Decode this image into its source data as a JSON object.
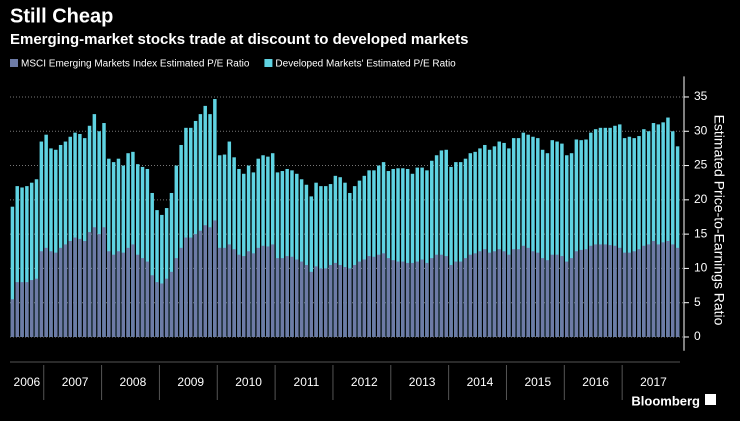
{
  "chart_data": {
    "type": "bar",
    "title": "Still Cheap",
    "subtitle": "Emerging-market stocks trade at discount to developed markets",
    "y_label": "Estimated Price-to-Earnings Ratio",
    "source": "Bloomberg",
    "categories": [
      null,
      null,
      null,
      "2006",
      null,
      null,
      null,
      null,
      null,
      null,
      null,
      null,
      null,
      "2007",
      null,
      null,
      null,
      null,
      null,
      null,
      null,
      null,
      null,
      null,
      null,
      "2008",
      null,
      null,
      null,
      null,
      null,
      null,
      null,
      null,
      null,
      null,
      null,
      "2009",
      null,
      null,
      null,
      null,
      null,
      null,
      null,
      null,
      null,
      null,
      null,
      "2010",
      null,
      null,
      null,
      null,
      null,
      null,
      null,
      null,
      null,
      null,
      null,
      "2011",
      null,
      null,
      null,
      null,
      null,
      null,
      null,
      null,
      null,
      null,
      null,
      "2012",
      null,
      null,
      null,
      null,
      null,
      null,
      null,
      null,
      null,
      null,
      null,
      "2013",
      null,
      null,
      null,
      null,
      null,
      null,
      null,
      null,
      null,
      null,
      null,
      "2014",
      null,
      null,
      null,
      null,
      null,
      null,
      null,
      null,
      null,
      null,
      null,
      "2015",
      null,
      null,
      null,
      null,
      null,
      null,
      null,
      null,
      null,
      null,
      null,
      "2016",
      null,
      null,
      null,
      null,
      null,
      null,
      null,
      null,
      null,
      null,
      null,
      "2017",
      null,
      null,
      null,
      null,
      null
    ],
    "series": [
      {
        "name": "Developed Markets' Estimated P/E Ratio",
        "color": "#5fd3e2",
        "values": [
          19,
          22,
          21.8,
          22,
          22.5,
          23,
          28.5,
          29.5,
          27.5,
          27.3,
          28,
          28.5,
          29.2,
          29.8,
          29.6,
          29,
          30.8,
          32.5,
          30,
          31.2,
          26,
          25.5,
          26,
          25,
          26.8,
          27,
          25.2,
          24.8,
          24.5,
          21,
          18.5,
          17.8,
          18.8,
          21,
          25,
          28,
          30.5,
          30.5,
          31.5,
          32.5,
          33.7,
          32.5,
          34.7,
          26.5,
          26.6,
          28.5,
          26.2,
          24.5,
          23.8,
          25,
          24,
          26,
          26.5,
          26.3,
          26.8,
          24,
          24.2,
          24.5,
          24.3,
          23.8,
          23,
          22.2,
          20.5,
          22.5,
          22,
          22,
          22.3,
          23.5,
          23.3,
          22.5,
          21,
          22,
          22.8,
          23.5,
          24.3,
          24.3,
          25,
          25.5,
          24.2,
          24.5,
          24.6,
          24.6,
          24.5,
          23.8,
          24.7,
          24.7,
          24.3,
          25.7,
          26.5,
          27.2,
          27.3,
          24.8,
          25.5,
          25.5,
          26,
          26.8,
          27,
          27.5,
          28,
          27.3,
          27.8,
          28.5,
          28.3,
          27.5,
          29,
          29,
          29.8,
          29.5,
          29.2,
          29,
          27.3,
          26.8,
          28.7,
          28.5,
          28.2,
          26.5,
          26.8,
          28.8,
          28.7,
          28.8,
          29.8,
          30.3,
          30.5,
          30.5,
          30.5,
          30.8,
          31,
          29,
          29.2,
          29,
          29.3,
          30.3,
          30,
          31.2,
          31,
          31.3,
          32,
          30,
          27.8
        ]
      },
      {
        "name": "MSCI Emerging Markets Index Estimated P/E Ratio",
        "color": "#6d7ba6",
        "values": [
          5.5,
          8,
          8,
          8,
          8.3,
          8.5,
          12.5,
          13,
          12.5,
          12.3,
          13,
          13.5,
          14,
          14.5,
          14.3,
          14,
          15.3,
          16,
          15,
          16,
          12.5,
          12,
          12.5,
          12.3,
          13,
          13.5,
          12,
          11.5,
          11,
          9,
          8,
          7.8,
          8.5,
          9.5,
          11.5,
          13,
          14.5,
          14.5,
          15,
          15.5,
          16.3,
          16,
          17,
          13,
          13,
          13.5,
          12.8,
          12,
          11.8,
          12.5,
          12.2,
          13,
          13.3,
          13.2,
          13.5,
          11.5,
          11.5,
          11.8,
          11.7,
          11.3,
          11,
          10.5,
          9.5,
          10.3,
          10,
          10,
          10.5,
          10.8,
          10.5,
          10.2,
          10,
          10.5,
          11,
          11.3,
          11.8,
          11.7,
          12,
          12.2,
          11.5,
          11.2,
          11,
          11,
          10.8,
          10.8,
          11,
          11.3,
          10.8,
          11.5,
          12,
          12,
          11.8,
          10.5,
          11,
          11,
          11.5,
          12,
          12.2,
          12.5,
          12.8,
          12.3,
          12.5,
          12.8,
          12.5,
          12,
          12.8,
          12.8,
          13.3,
          13,
          12.5,
          12.3,
          11.5,
          11.2,
          12,
          12,
          11.8,
          11,
          11.5,
          12.5,
          12.7,
          12.8,
          13.3,
          13.5,
          13.5,
          13.5,
          13.4,
          13.3,
          13,
          12.3,
          12.3,
          12.5,
          12.8,
          13.3,
          13.5,
          14,
          13.5,
          13.8,
          14,
          13.5,
          13
        ]
      }
    ],
    "ylim": [
      -2,
      38
    ],
    "yticks": [
      0,
      5,
      10,
      15,
      20,
      25,
      30,
      35
    ],
    "grid": true
  }
}
